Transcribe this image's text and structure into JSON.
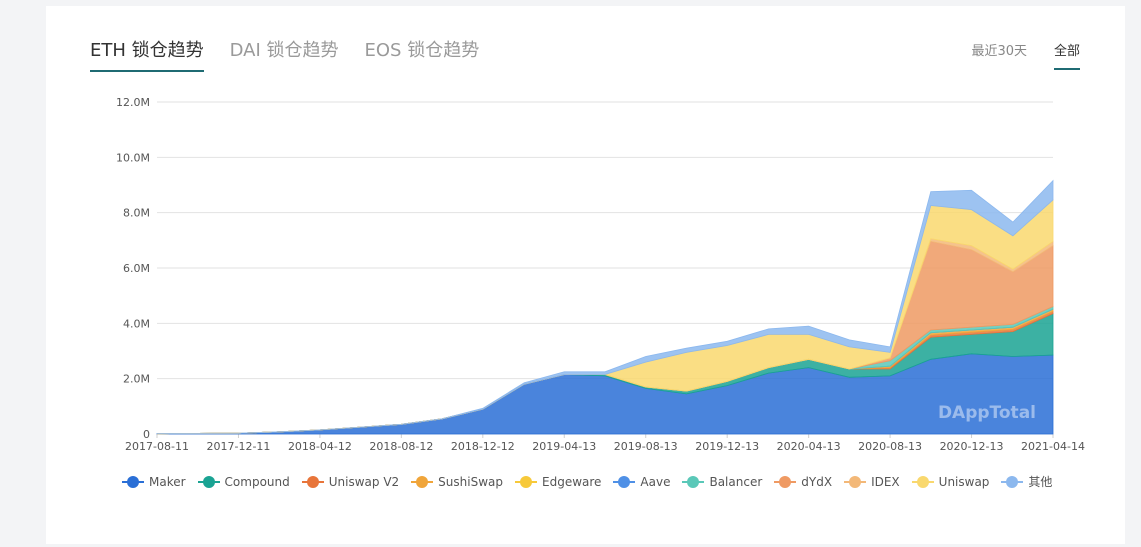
{
  "tabs": [
    {
      "label": "ETH 锁仓趋势",
      "active": true
    },
    {
      "label": "DAI 锁仓趋势",
      "active": false
    },
    {
      "label": "EOS 锁仓趋势",
      "active": false
    }
  ],
  "range_buttons": [
    {
      "label": "最近30天",
      "active": false
    },
    {
      "label": "全部",
      "active": true
    }
  ],
  "watermark": "DAppTotal",
  "chart_data": {
    "type": "area",
    "stacked": true,
    "x": [
      "2017-08-11",
      "2017-10-11",
      "2017-12-11",
      "2018-02-11",
      "2018-04-12",
      "2018-06-12",
      "2018-08-12",
      "2018-10-12",
      "2018-12-12",
      "2019-02-12",
      "2019-04-13",
      "2019-06-13",
      "2019-08-13",
      "2019-10-13",
      "2019-12-13",
      "2020-02-13",
      "2020-04-13",
      "2020-06-13",
      "2020-08-13",
      "2020-10-13",
      "2020-12-13",
      "2021-02-13",
      "2021-04-14"
    ],
    "x_tick_labels": [
      "2017-08-11",
      "2017-12-11",
      "2018-04-12",
      "2018-08-12",
      "2018-12-12",
      "2019-04-13",
      "2019-08-13",
      "2019-12-13",
      "2020-04-13",
      "2020-08-13",
      "2020-12-13",
      "2021-04-14"
    ],
    "y_tick_labels": [
      "0",
      "2.0M",
      "4.0M",
      "6.0M",
      "8.0M",
      "10.0M",
      "12.0M"
    ],
    "ylim": [
      0,
      12000000
    ],
    "grid": true,
    "legend_position": "bottom",
    "series": [
      {
        "name": "Maker",
        "color": "#2a6fd6",
        "values": [
          10000,
          20000,
          30000,
          80000,
          150000,
          250000,
          350000,
          550000,
          900000,
          1800000,
          2150000,
          2100000,
          1650000,
          1450000,
          1750000,
          2200000,
          2400000,
          2050000,
          2100000,
          2700000,
          2900000,
          2800000,
          2850000
        ]
      },
      {
        "name": "Compound",
        "color": "#1aa393",
        "values": [
          0,
          0,
          0,
          0,
          0,
          0,
          0,
          0,
          0,
          0,
          0,
          50000,
          50000,
          100000,
          150000,
          200000,
          300000,
          300000,
          250000,
          800000,
          700000,
          900000,
          1500000
        ]
      },
      {
        "name": "Uniswap V2",
        "color": "#e8753a",
        "values": [
          0,
          0,
          0,
          0,
          0,
          0,
          0,
          0,
          0,
          0,
          0,
          0,
          0,
          0,
          0,
          0,
          0,
          0,
          50000,
          80000,
          80000,
          80000,
          80000
        ]
      },
      {
        "name": "SushiSwap",
        "color": "#f0a53a",
        "values": [
          0,
          0,
          0,
          0,
          0,
          0,
          0,
          0,
          0,
          0,
          0,
          0,
          0,
          0,
          0,
          0,
          0,
          0,
          50000,
          80000,
          80000,
          80000,
          80000
        ]
      },
      {
        "name": "Edgeware",
        "color": "#f7c93a",
        "values": [
          0,
          0,
          0,
          0,
          0,
          0,
          0,
          0,
          0,
          0,
          0,
          0,
          0,
          0,
          0,
          0,
          0,
          0,
          0,
          0,
          0,
          0,
          0
        ]
      },
      {
        "name": "Aave",
        "color": "#4f90e6",
        "values": [
          0,
          0,
          0,
          0,
          0,
          0,
          0,
          0,
          0,
          0,
          0,
          0,
          0,
          0,
          0,
          0,
          0,
          0,
          0,
          0,
          0,
          0,
          0
        ]
      },
      {
        "name": "Balancer",
        "color": "#5ac8b8",
        "values": [
          0,
          0,
          0,
          0,
          0,
          0,
          0,
          0,
          0,
          0,
          0,
          0,
          0,
          0,
          0,
          0,
          0,
          0,
          200000,
          100000,
          100000,
          100000,
          100000
        ]
      },
      {
        "name": "dYdX",
        "color": "#ef9a63",
        "values": [
          0,
          0,
          0,
          0,
          0,
          0,
          0,
          0,
          0,
          0,
          0,
          0,
          0,
          0,
          0,
          0,
          0,
          0,
          100000,
          3200000,
          2800000,
          1900000,
          2200000
        ]
      },
      {
        "name": "IDEX",
        "color": "#f3b878",
        "values": [
          0,
          0,
          0,
          0,
          0,
          0,
          0,
          0,
          0,
          0,
          0,
          0,
          0,
          0,
          0,
          0,
          0,
          0,
          0,
          100000,
          150000,
          100000,
          150000
        ]
      },
      {
        "name": "Uniswap",
        "color": "#f9d86e",
        "values": [
          0,
          0,
          0,
          0,
          0,
          0,
          0,
          0,
          0,
          0,
          0,
          0,
          900000,
          1400000,
          1300000,
          1200000,
          900000,
          800000,
          200000,
          1200000,
          1300000,
          1200000,
          1500000
        ]
      },
      {
        "name": "其他",
        "color": "#8cb8ee",
        "values": [
          0,
          0,
          0,
          0,
          0,
          0,
          0,
          0,
          30000,
          50000,
          100000,
          100000,
          200000,
          150000,
          150000,
          200000,
          300000,
          250000,
          200000,
          500000,
          700000,
          500000,
          700000
        ]
      }
    ]
  }
}
